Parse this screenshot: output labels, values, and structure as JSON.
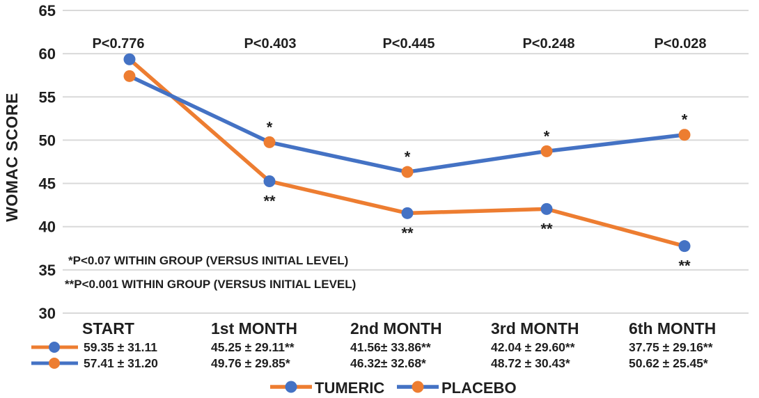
{
  "chart_data": {
    "type": "line",
    "title": "",
    "ylabel": "WOMAC SCORE",
    "xlabel": "",
    "ylim": [
      30,
      65
    ],
    "yticks": [
      65,
      60,
      55,
      50,
      45,
      40,
      35,
      30
    ],
    "grid": true,
    "legend_position": "bottom",
    "categories": [
      "START",
      "1st MONTH",
      "2nd MONTH",
      "3rd MONTH",
      "6th MONTH"
    ],
    "series": [
      {
        "name": "TUMERIC",
        "line_color": "#ED7D31",
        "marker_color": "#4472C4",
        "values": [
          59.35,
          45.25,
          41.56,
          42.04,
          37.75
        ],
        "point_flags": [
          "",
          "**",
          "**",
          "**",
          "**"
        ],
        "flag_position": "below"
      },
      {
        "name": "PLACEBO",
        "line_color": "#4472C4",
        "marker_color": "#ED7D31",
        "values": [
          57.41,
          49.76,
          46.32,
          48.72,
          50.62
        ],
        "point_flags": [
          "",
          "*",
          "*",
          "*",
          "*"
        ],
        "flag_position": "above"
      }
    ],
    "p_values": [
      {
        "label": "P<0.776",
        "color": "#1f1f1f"
      },
      {
        "label": "P<0.403",
        "color": "#1f1f1f"
      },
      {
        "label": "P<0.445",
        "color": "#1f1f1f"
      },
      {
        "label": "P<0.248",
        "color": "#1f1f1f"
      },
      {
        "label": "P<0.028",
        "color": "#e03e3e"
      }
    ],
    "footnotes": [
      "*P<0.07 WITHIN GROUP (VERSUS INITIAL LEVEL)",
      "**P<0.001 WITHIN GROUP (VERSUS INITIAL LEVEL)"
    ],
    "table": {
      "header": [
        "START",
        "1st MONTH",
        "2nd MONTH",
        "3rd MONTH",
        "6th MONTH"
      ],
      "rows": [
        {
          "series": "TUMERIC",
          "line_color": "#ED7D31",
          "marker_color": "#4472C4",
          "cells": [
            "59.35 ± 31.11",
            "45.25 ± 29.11**",
            "41.56± 33.86**",
            "42.04 ± 29.60**",
            "37.75 ± 29.16**"
          ]
        },
        {
          "series": "PLACEBO",
          "line_color": "#4472C4",
          "marker_color": "#ED7D31",
          "cells": [
            "57.41 ± 31.20",
            "49.76 ± 29.85*",
            "46.32± 32.68*",
            "48.72 ± 30.43*",
            "50.62 ± 25.45*"
          ]
        }
      ]
    },
    "legend": [
      "TUMERIC",
      "PLACEBO"
    ],
    "colors": {
      "blue": "#4472C4",
      "orange": "#ED7D31",
      "gridline": "#d9d9d9",
      "significant_p_red": "#e03e3e"
    }
  }
}
